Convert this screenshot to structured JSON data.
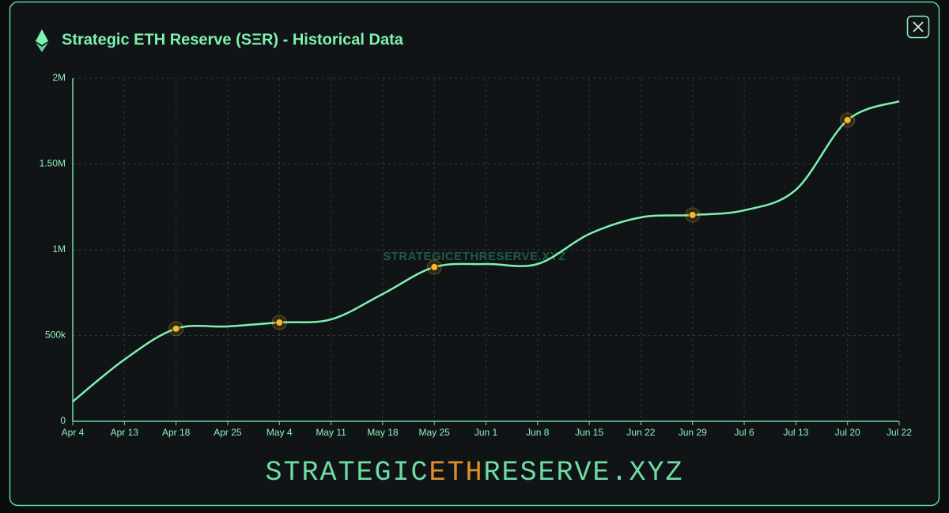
{
  "chart_data": {
    "type": "line",
    "title": "Strategic ETH Reserve (SΞR) - Historical Data",
    "categories": [
      "Apr 4",
      "Apr 13",
      "Apr 18",
      "Apr 25",
      "May 4",
      "May 11",
      "May 18",
      "May 25",
      "Jun 1",
      "Jun 8",
      "Jun 15",
      "Jun 22",
      "Jun 29",
      "Jul 6",
      "Jul 13",
      "Jul 20",
      "Jul 22"
    ],
    "series": [
      {
        "color": "#7ef2b0",
        "values": [
          115000,
          360000,
          540000,
          553000,
          576000,
          594000,
          742000,
          899000,
          917000,
          917000,
          1092000,
          1189000,
          1203000,
          1230000,
          1350000,
          1756000,
          1866000
        ]
      },
      {
        "color": "#f5b82e",
        "values": [
          null,
          null,
          540000,
          null,
          576000,
          null,
          null,
          899000,
          null,
          null,
          null,
          null,
          1203000,
          null,
          null,
          1756000,
          null
        ]
      }
    ],
    "ylim": [
      0,
      2000000
    ],
    "yticks": [
      0,
      {
        "value": 500000,
        "label": "500k"
      },
      {
        "value": 1000000,
        "label": "1M"
      },
      {
        "value": 1500000,
        "label": "1.50M"
      },
      {
        "value": 2000000,
        "label": "2M"
      }
    ],
    "grid": true,
    "watermark": "STRATEGICETHRESERVE.XYZ",
    "footer": [
      "STRATEGIC",
      "ETH",
      "RESERVE.XYZ"
    ]
  }
}
